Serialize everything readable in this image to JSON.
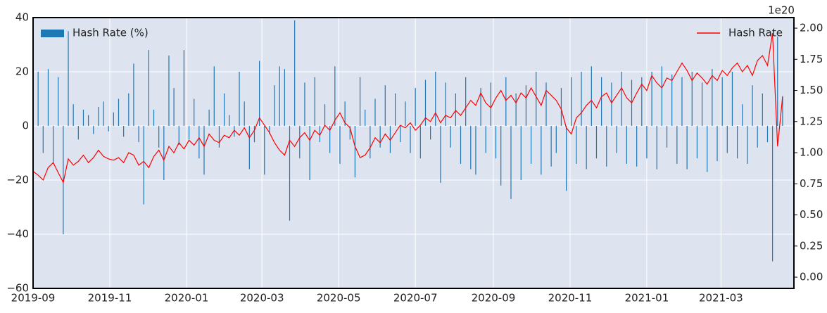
{
  "chart_data": {
    "type": "bar_line",
    "x": [
      0,
      4,
      8,
      12,
      16,
      20,
      24,
      28,
      32,
      36,
      40,
      44,
      48,
      52,
      56,
      60,
      64,
      68,
      72,
      76,
      80,
      84,
      88,
      92,
      96,
      100,
      104,
      108,
      112,
      116,
      120,
      124,
      128,
      132,
      136,
      140,
      144,
      148,
      152,
      156,
      160,
      164,
      168,
      172,
      176,
      180,
      184,
      188,
      192,
      196,
      200,
      204,
      208,
      212,
      216,
      220,
      224,
      228,
      232,
      236,
      240,
      244,
      248,
      252,
      256,
      260,
      264,
      268,
      272,
      276,
      280,
      284,
      288,
      292,
      296,
      300,
      304,
      308,
      312,
      316,
      320,
      324,
      328,
      332,
      336,
      340,
      344,
      348,
      352,
      356,
      360,
      364,
      368,
      372,
      376,
      380,
      384,
      388,
      392,
      396,
      400,
      404,
      408,
      412,
      416,
      420,
      424,
      428,
      432,
      436,
      440,
      444,
      448,
      452,
      456,
      460,
      464,
      468,
      472,
      476,
      480,
      484,
      488,
      492,
      496,
      500,
      504,
      508,
      512,
      516,
      520,
      524,
      528,
      532,
      536,
      540,
      544,
      548,
      552,
      556,
      560,
      564,
      568,
      572,
      576,
      580,
      584,
      588,
      592,
      596
    ],
    "series": [
      {
        "name": "Hash Rate (%)",
        "type": "bar",
        "color": "#1f77b4",
        "axis": "y",
        "legend_loc": "upper left",
        "values": [
          3,
          20,
          -10,
          21,
          -14,
          18,
          -40,
          35,
          8,
          -5,
          6,
          4,
          -3,
          7,
          9,
          -2,
          5,
          10,
          -4,
          12,
          23,
          -6,
          -29,
          28,
          6,
          -8,
          -20,
          26,
          14,
          -7,
          28,
          -5,
          10,
          -12,
          -18,
          6,
          22,
          -8,
          12,
          4,
          -4,
          20,
          9,
          -16,
          -6,
          24,
          -18,
          -3,
          15,
          22,
          21,
          -35,
          39,
          -12,
          16,
          -20,
          18,
          -6,
          8,
          -10,
          22,
          -14,
          9,
          -5,
          -19,
          18,
          6,
          -12,
          10,
          -8,
          15,
          -10,
          12,
          -6,
          9,
          -10,
          14,
          -12,
          17,
          -5,
          20,
          -21,
          16,
          -8,
          12,
          -14,
          18,
          -16,
          -18,
          14,
          -10,
          16,
          -12,
          -22,
          18,
          -27,
          12,
          -20,
          15,
          -14,
          20,
          -18,
          16,
          -15,
          -10,
          14,
          -24,
          18,
          -14,
          20,
          -16,
          22,
          -12,
          18,
          -15,
          16,
          -10,
          20,
          -14,
          17,
          -15,
          18,
          -12,
          20,
          -16,
          22,
          -8,
          19,
          -14,
          18,
          -16,
          20,
          -12,
          16,
          -17,
          21,
          -13,
          18,
          -10,
          20,
          -12,
          8,
          -14,
          15,
          -8,
          12,
          -6,
          -50,
          33,
          11
        ]
      },
      {
        "name": "Hash Rate",
        "type": "line",
        "color": "#ff0000",
        "axis": "y2",
        "legend_loc": "upper right",
        "values": [
          0.85,
          0.82,
          0.78,
          0.88,
          0.92,
          0.84,
          0.76,
          0.95,
          0.9,
          0.93,
          0.98,
          0.92,
          0.96,
          1.02,
          0.97,
          0.95,
          0.94,
          0.96,
          0.92,
          1.0,
          0.98,
          0.9,
          0.93,
          0.88,
          0.97,
          1.02,
          0.94,
          1.05,
          1.0,
          1.08,
          1.03,
          1.1,
          1.06,
          1.12,
          1.05,
          1.15,
          1.1,
          1.08,
          1.14,
          1.12,
          1.18,
          1.14,
          1.2,
          1.12,
          1.18,
          1.28,
          1.22,
          1.16,
          1.08,
          1.02,
          0.98,
          1.1,
          1.05,
          1.12,
          1.16,
          1.1,
          1.18,
          1.14,
          1.22,
          1.18,
          1.26,
          1.32,
          1.24,
          1.2,
          1.05,
          0.96,
          0.98,
          1.04,
          1.12,
          1.08,
          1.15,
          1.1,
          1.16,
          1.22,
          1.2,
          1.24,
          1.18,
          1.22,
          1.28,
          1.25,
          1.32,
          1.24,
          1.3,
          1.28,
          1.34,
          1.3,
          1.36,
          1.42,
          1.38,
          1.48,
          1.4,
          1.36,
          1.44,
          1.5,
          1.42,
          1.46,
          1.4,
          1.48,
          1.44,
          1.52,
          1.45,
          1.38,
          1.5,
          1.46,
          1.42,
          1.35,
          1.2,
          1.15,
          1.28,
          1.32,
          1.38,
          1.42,
          1.36,
          1.45,
          1.48,
          1.4,
          1.46,
          1.52,
          1.44,
          1.4,
          1.48,
          1.55,
          1.5,
          1.62,
          1.56,
          1.52,
          1.6,
          1.58,
          1.65,
          1.72,
          1.66,
          1.58,
          1.64,
          1.6,
          1.55,
          1.62,
          1.58,
          1.66,
          1.62,
          1.68,
          1.72,
          1.65,
          1.7,
          1.62,
          1.74,
          1.78,
          1.7,
          1.96,
          1.05,
          1.45
        ]
      }
    ],
    "xlim": [
      0,
      605
    ],
    "xticks": [
      {
        "value": 0,
        "label": "2019-09"
      },
      {
        "value": 61,
        "label": "2019-11"
      },
      {
        "value": 122,
        "label": "2020-01"
      },
      {
        "value": 182,
        "label": "2020-03"
      },
      {
        "value": 243,
        "label": "2020-05"
      },
      {
        "value": 304,
        "label": "2020-07"
      },
      {
        "value": 366,
        "label": "2020-09"
      },
      {
        "value": 427,
        "label": "2020-11"
      },
      {
        "value": 488,
        "label": "2021-01"
      },
      {
        "value": 547,
        "label": "2021-03"
      }
    ],
    "ylim": [
      -60,
      40
    ],
    "yticks": [
      {
        "value": -60,
        "label": "−60"
      },
      {
        "value": -40,
        "label": "−40"
      },
      {
        "value": -20,
        "label": "−20"
      },
      0,
      20,
      40
    ],
    "y2lim": [
      -0.09,
      2.085
    ],
    "y2ticks": [
      {
        "value": 0,
        "label": "0.00"
      },
      {
        "value": 0.25,
        "label": "0.25"
      },
      {
        "value": 0.5,
        "label": "0.50"
      },
      {
        "value": 0.75,
        "label": "0.75"
      },
      {
        "value": 1,
        "label": "1.00"
      },
      {
        "value": 1.25,
        "label": "1.25"
      },
      {
        "value": 1.5,
        "label": "1.50"
      },
      {
        "value": 1.75,
        "label": "1.75"
      },
      {
        "value": 2,
        "label": "2.00"
      }
    ],
    "y2_offset_label": "1e20",
    "grid": true
  }
}
